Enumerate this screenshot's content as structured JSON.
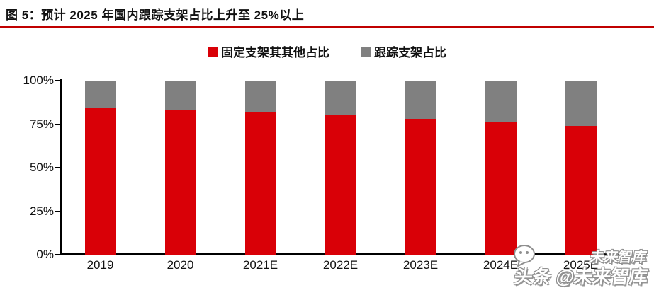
{
  "header": {
    "title": "图 5：预计 2025 年国内跟踪支架占比上升至 25%以上"
  },
  "legend": [
    {
      "label": "固定支架其其他占比",
      "color": "#d90007"
    },
    {
      "label": "跟踪支架占比",
      "color": "#808080"
    }
  ],
  "watermark": {
    "echo_text": "未来智库",
    "main_text": "头条 @未来智库",
    "icon": "chat-bubble-icon"
  },
  "colors": {
    "bar_red": "#d90007",
    "bar_gray": "#808080",
    "rule_red": "#c00000",
    "axis_black": "#000000"
  },
  "chart_data": {
    "type": "bar",
    "stacked": true,
    "percent_stacked": true,
    "title": "预计 2025 年国内跟踪支架占比上升至 25%以上",
    "categories": [
      "2019",
      "2020",
      "2021E",
      "2022E",
      "2023E",
      "2024E",
      "2025E"
    ],
    "series": [
      {
        "name": "固定支架其其他占比",
        "color": "#d90007",
        "values": [
          84,
          83,
          82,
          80,
          78,
          76,
          74
        ]
      },
      {
        "name": "跟踪支架占比",
        "color": "#808080",
        "values": [
          16,
          17,
          18,
          20,
          22,
          24,
          26
        ]
      }
    ],
    "xlabel": "",
    "ylabel": "",
    "ylim": [
      0,
      100
    ],
    "y_ticks": [
      "0%",
      "25%",
      "50%",
      "75%",
      "100%"
    ],
    "grid": false,
    "legend_position": "top-center"
  }
}
